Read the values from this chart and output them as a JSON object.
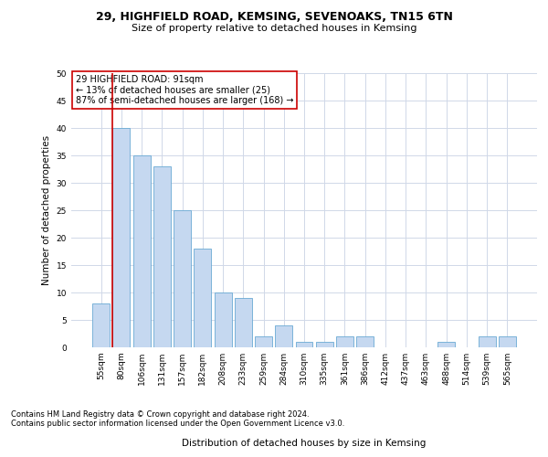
{
  "title1": "29, HIGHFIELD ROAD, KEMSING, SEVENOAKS, TN15 6TN",
  "title2": "Size of property relative to detached houses in Kemsing",
  "xlabel": "Distribution of detached houses by size in Kemsing",
  "ylabel": "Number of detached properties",
  "categories": [
    "55sqm",
    "80sqm",
    "106sqm",
    "131sqm",
    "157sqm",
    "182sqm",
    "208sqm",
    "233sqm",
    "259sqm",
    "284sqm",
    "310sqm",
    "335sqm",
    "361sqm",
    "386sqm",
    "412sqm",
    "437sqm",
    "463sqm",
    "488sqm",
    "514sqm",
    "539sqm",
    "565sqm"
  ],
  "values": [
    8,
    40,
    35,
    33,
    25,
    18,
    10,
    9,
    2,
    4,
    1,
    1,
    2,
    2,
    0,
    0,
    0,
    1,
    0,
    2,
    2
  ],
  "bar_color": "#c5d8f0",
  "bar_edge_color": "#6aaad4",
  "annotation_line1": "29 HIGHFIELD ROAD: 91sqm",
  "annotation_line2": "← 13% of detached houses are smaller (25)",
  "annotation_line3": "87% of semi-detached houses are larger (168) →",
  "annotation_box_color": "#ffffff",
  "annotation_box_edge_color": "#cc0000",
  "red_line_color": "#cc0000",
  "red_line_x": 0.6,
  "footnote1": "Contains HM Land Registry data © Crown copyright and database right 2024.",
  "footnote2": "Contains public sector information licensed under the Open Government Licence v3.0.",
  "grid_color": "#d0d8e8",
  "ylim": [
    0,
    50
  ],
  "yticks": [
    0,
    5,
    10,
    15,
    20,
    25,
    30,
    35,
    40,
    45,
    50
  ],
  "title_fontsize": 9,
  "subtitle_fontsize": 8,
  "axis_label_fontsize": 7.5,
  "tick_fontsize": 6.5,
  "annotation_fontsize": 7,
  "footnote_fontsize": 6,
  "bg_color": "#ffffff"
}
